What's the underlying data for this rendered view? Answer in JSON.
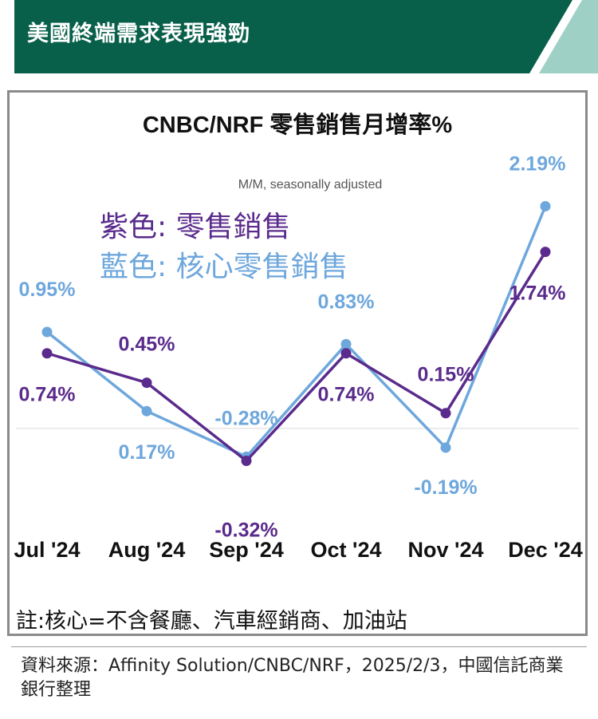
{
  "header": {
    "title": "美國終端需求表現強勁"
  },
  "colors": {
    "header_bg": "#08604a",
    "header_accent": "#9fd0c6",
    "retail": "#5a2b8c",
    "core": "#6ea7dc"
  },
  "legend": {
    "retail": "紫色: 零售銷售",
    "core": "藍色: 核心零售銷售"
  },
  "note": "註:核心=不含餐廳、汽車經銷商、加油站",
  "source": "資料來源：Affinity Solution/CNBC/NRF，2025/2/3，中國信託商業銀行整理",
  "chart_data": {
    "type": "line",
    "title": "CNBC/NRF 零售銷售月增率%",
    "subtitle": "M/M, seasonally adjusted",
    "categories": [
      "Jul '24",
      "Aug '24",
      "Sep '24",
      "Oct '24",
      "Nov '24",
      "Dec '24"
    ],
    "series": [
      {
        "name": "零售銷售",
        "color": "#5a2b8c",
        "values": [
          0.74,
          0.45,
          -0.32,
          0.74,
          0.15,
          1.74
        ],
        "labels": [
          "0.74%",
          "0.45%",
          "-0.32%",
          "0.74%",
          "0.15%",
          "1.74%"
        ]
      },
      {
        "name": "核心零售銷售",
        "color": "#6ea7dc",
        "values": [
          0.95,
          0.17,
          -0.28,
          0.83,
          -0.19,
          2.19
        ],
        "labels": [
          "0.95%",
          "0.17%",
          "-0.28%",
          "0.83%",
          "-0.19%",
          "2.19%"
        ]
      }
    ],
    "ylim": [
      -0.6,
      2.6
    ],
    "grid": false,
    "legend_placement": "top-left"
  }
}
